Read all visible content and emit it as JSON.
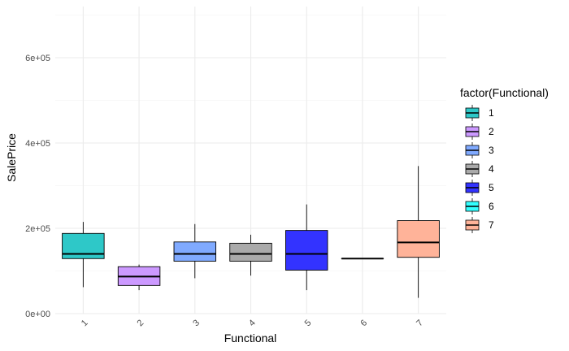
{
  "chart_data": {
    "type": "boxplot",
    "xlabel": "Functional",
    "ylabel": "SalePrice",
    "ylim": [
      0,
      720000
    ],
    "y_ticks": [
      0,
      200000,
      400000,
      600000
    ],
    "y_tick_labels": [
      "0e+00",
      "2e+05",
      "4e+05",
      "6e+05"
    ],
    "grid": true,
    "legend_title": "factor(Functional)",
    "legend_position": "right",
    "categories": [
      "1",
      "2",
      "3",
      "4",
      "5",
      "6",
      "7"
    ],
    "boxes": [
      {
        "category": "1",
        "whisker_low": 62000,
        "q1": 129000,
        "median": 140000,
        "q3": 188000,
        "whisker_high": 215000,
        "color": "#2EC8C8"
      },
      {
        "category": "2",
        "whisker_low": 55000,
        "q1": 66000,
        "median": 87000,
        "q3": 110000,
        "whisker_high": 115000,
        "color": "#CC99FF"
      },
      {
        "category": "3",
        "whisker_low": 83000,
        "q1": 123000,
        "median": 140000,
        "q3": 168000,
        "whisker_high": 210000,
        "color": "#80AAFF"
      },
      {
        "category": "4",
        "whisker_low": 89000,
        "q1": 123000,
        "median": 140000,
        "q3": 165000,
        "whisker_high": 185000,
        "color": "#AAAAAA"
      },
      {
        "category": "5",
        "whisker_low": 55000,
        "q1": 102000,
        "median": 140000,
        "q3": 195000,
        "whisker_high": 256000,
        "color": "#3333FF"
      },
      {
        "category": "6",
        "whisker_low": 129000,
        "q1": 129000,
        "median": 129000,
        "q3": 129000,
        "whisker_high": 129000,
        "color": "#33FFFF"
      },
      {
        "category": "7",
        "whisker_low": 37000,
        "q1": 132000,
        "median": 167000,
        "q3": 218000,
        "whisker_high": 346000,
        "color": "#FFB399"
      }
    ]
  }
}
